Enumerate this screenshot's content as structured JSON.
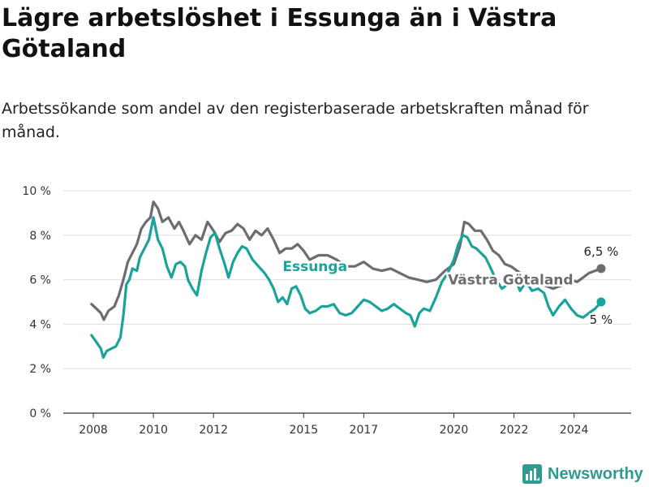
{
  "title": "Lägre arbetslöshet i Essunga än i Västra Götaland",
  "subtitle": "Arbetssökande som andel av den registerbaserade arbetskraften månad för månad.",
  "brand": {
    "name": "Newsworthy",
    "icon": "newsworthy-logo-icon",
    "color": "#2f9a8f"
  },
  "chart_data": {
    "type": "line",
    "title": "Lägre arbetslöshet i Essunga än i Västra Götaland",
    "subtitle": "Arbetssökande som andel av den registerbaserade arbetskraften månad för månad.",
    "xlabel": "",
    "ylabel": "",
    "x_unit": "year",
    "xlim": [
      2007.0,
      2025.9
    ],
    "ylim": [
      0,
      10
    ],
    "x_ticks": [
      2008,
      2010,
      2012,
      2015,
      2017,
      2020,
      2022,
      2024
    ],
    "x_tick_labels": [
      "2008",
      "2010",
      "2012",
      "2015",
      "2017",
      "2020",
      "2022",
      "2024"
    ],
    "y_ticks": [
      0,
      2,
      4,
      6,
      8,
      10
    ],
    "y_tick_labels": [
      "0 %",
      "2 %",
      "4 %",
      "6 %",
      "8 %",
      "10 %"
    ],
    "grid": true,
    "legend": "none (series labelled directly on the lines)",
    "series": [
      {
        "name": "Västra Götaland",
        "color": "#6c6c73",
        "end_label": "6,5 %",
        "points": [
          [
            2007.94,
            4.9
          ],
          [
            2008.1,
            4.7
          ],
          [
            2008.25,
            4.5
          ],
          [
            2008.35,
            4.2
          ],
          [
            2008.5,
            4.6
          ],
          [
            2008.7,
            4.8
          ],
          [
            2008.85,
            5.3
          ],
          [
            2009.0,
            6.0
          ],
          [
            2009.15,
            6.8
          ],
          [
            2009.3,
            7.2
          ],
          [
            2009.45,
            7.6
          ],
          [
            2009.6,
            8.3
          ],
          [
            2009.75,
            8.6
          ],
          [
            2009.9,
            8.8
          ],
          [
            2010.0,
            9.5
          ],
          [
            2010.15,
            9.2
          ],
          [
            2010.3,
            8.6
          ],
          [
            2010.5,
            8.8
          ],
          [
            2010.7,
            8.3
          ],
          [
            2010.85,
            8.6
          ],
          [
            2011.0,
            8.2
          ],
          [
            2011.2,
            7.6
          ],
          [
            2011.4,
            8.0
          ],
          [
            2011.6,
            7.8
          ],
          [
            2011.8,
            8.6
          ],
          [
            2012.0,
            8.2
          ],
          [
            2012.2,
            7.7
          ],
          [
            2012.4,
            8.1
          ],
          [
            2012.6,
            8.2
          ],
          [
            2012.8,
            8.5
          ],
          [
            2013.0,
            8.3
          ],
          [
            2013.2,
            7.8
          ],
          [
            2013.4,
            8.2
          ],
          [
            2013.6,
            8.0
          ],
          [
            2013.8,
            8.3
          ],
          [
            2014.0,
            7.8
          ],
          [
            2014.2,
            7.2
          ],
          [
            2014.4,
            7.4
          ],
          [
            2014.6,
            7.4
          ],
          [
            2014.8,
            7.6
          ],
          [
            2015.0,
            7.3
          ],
          [
            2015.2,
            6.9
          ],
          [
            2015.5,
            7.1
          ],
          [
            2015.8,
            7.1
          ],
          [
            2016.1,
            6.9
          ],
          [
            2016.4,
            6.6
          ],
          [
            2016.7,
            6.6
          ],
          [
            2017.0,
            6.8
          ],
          [
            2017.3,
            6.5
          ],
          [
            2017.6,
            6.4
          ],
          [
            2017.9,
            6.5
          ],
          [
            2018.2,
            6.3
          ],
          [
            2018.5,
            6.1
          ],
          [
            2018.8,
            6.0
          ],
          [
            2019.1,
            5.9
          ],
          [
            2019.4,
            6.0
          ],
          [
            2019.7,
            6.4
          ],
          [
            2020.0,
            6.7
          ],
          [
            2020.2,
            7.5
          ],
          [
            2020.35,
            8.6
          ],
          [
            2020.5,
            8.5
          ],
          [
            2020.7,
            8.2
          ],
          [
            2020.9,
            8.2
          ],
          [
            2021.1,
            7.8
          ],
          [
            2021.3,
            7.3
          ],
          [
            2021.5,
            7.1
          ],
          [
            2021.7,
            6.7
          ],
          [
            2021.9,
            6.6
          ],
          [
            2022.1,
            6.4
          ],
          [
            2022.3,
            6.2
          ],
          [
            2022.5,
            5.9
          ],
          [
            2022.7,
            5.8
          ],
          [
            2022.9,
            5.8
          ],
          [
            2023.1,
            5.7
          ],
          [
            2023.3,
            5.6
          ],
          [
            2023.5,
            5.7
          ],
          [
            2023.7,
            5.8
          ],
          [
            2023.9,
            6.0
          ],
          [
            2024.1,
            5.9
          ],
          [
            2024.3,
            6.1
          ],
          [
            2024.5,
            6.3
          ],
          [
            2024.7,
            6.4
          ],
          [
            2024.9,
            6.5
          ]
        ]
      },
      {
        "name": "Essunga",
        "color": "#1aa39a",
        "end_label": "5 %",
        "points": [
          [
            2007.94,
            3.5
          ],
          [
            2008.1,
            3.2
          ],
          [
            2008.25,
            2.9
          ],
          [
            2008.33,
            2.5
          ],
          [
            2008.45,
            2.8
          ],
          [
            2008.6,
            2.9
          ],
          [
            2008.75,
            3.0
          ],
          [
            2008.9,
            3.4
          ],
          [
            2009.0,
            4.4
          ],
          [
            2009.1,
            5.8
          ],
          [
            2009.2,
            6.0
          ],
          [
            2009.3,
            6.5
          ],
          [
            2009.45,
            6.4
          ],
          [
            2009.55,
            7.0
          ],
          [
            2009.7,
            7.4
          ],
          [
            2009.85,
            7.8
          ],
          [
            2010.0,
            8.8
          ],
          [
            2010.15,
            7.8
          ],
          [
            2010.3,
            7.4
          ],
          [
            2010.45,
            6.6
          ],
          [
            2010.6,
            6.1
          ],
          [
            2010.75,
            6.7
          ],
          [
            2010.9,
            6.8
          ],
          [
            2011.05,
            6.6
          ],
          [
            2011.15,
            6.0
          ],
          [
            2011.3,
            5.6
          ],
          [
            2011.45,
            5.3
          ],
          [
            2011.6,
            6.4
          ],
          [
            2011.75,
            7.2
          ],
          [
            2011.9,
            7.9
          ],
          [
            2012.05,
            8.1
          ],
          [
            2012.2,
            7.4
          ],
          [
            2012.35,
            6.8
          ],
          [
            2012.5,
            6.1
          ],
          [
            2012.65,
            6.8
          ],
          [
            2012.8,
            7.2
          ],
          [
            2012.95,
            7.5
          ],
          [
            2013.1,
            7.4
          ],
          [
            2013.3,
            6.9
          ],
          [
            2013.5,
            6.6
          ],
          [
            2013.7,
            6.3
          ],
          [
            2013.85,
            6.0
          ],
          [
            2014.0,
            5.6
          ],
          [
            2014.15,
            5.0
          ],
          [
            2014.3,
            5.2
          ],
          [
            2014.45,
            4.9
          ],
          [
            2014.6,
            5.6
          ],
          [
            2014.75,
            5.7
          ],
          [
            2014.9,
            5.3
          ],
          [
            2015.05,
            4.7
          ],
          [
            2015.2,
            4.5
          ],
          [
            2015.4,
            4.6
          ],
          [
            2015.6,
            4.8
          ],
          [
            2015.8,
            4.8
          ],
          [
            2016.0,
            4.9
          ],
          [
            2016.2,
            4.5
          ],
          [
            2016.4,
            4.4
          ],
          [
            2016.6,
            4.5
          ],
          [
            2016.8,
            4.8
          ],
          [
            2017.0,
            5.1
          ],
          [
            2017.2,
            5.0
          ],
          [
            2017.4,
            4.8
          ],
          [
            2017.6,
            4.6
          ],
          [
            2017.8,
            4.7
          ],
          [
            2018.0,
            4.9
          ],
          [
            2018.2,
            4.7
          ],
          [
            2018.4,
            4.5
          ],
          [
            2018.55,
            4.4
          ],
          [
            2018.7,
            3.9
          ],
          [
            2018.85,
            4.5
          ],
          [
            2019.0,
            4.7
          ],
          [
            2019.2,
            4.6
          ],
          [
            2019.4,
            5.2
          ],
          [
            2019.6,
            5.9
          ],
          [
            2019.8,
            6.3
          ],
          [
            2020.0,
            6.9
          ],
          [
            2020.15,
            7.6
          ],
          [
            2020.3,
            8.0
          ],
          [
            2020.45,
            7.9
          ],
          [
            2020.6,
            7.5
          ],
          [
            2020.75,
            7.4
          ],
          [
            2020.9,
            7.2
          ],
          [
            2021.05,
            7.0
          ],
          [
            2021.2,
            6.6
          ],
          [
            2021.4,
            6.0
          ],
          [
            2021.6,
            5.6
          ],
          [
            2021.8,
            5.8
          ],
          [
            2022.0,
            6.2
          ],
          [
            2022.2,
            5.5
          ],
          [
            2022.4,
            5.9
          ],
          [
            2022.6,
            5.5
          ],
          [
            2022.8,
            5.6
          ],
          [
            2023.0,
            5.4
          ],
          [
            2023.15,
            4.8
          ],
          [
            2023.3,
            4.4
          ],
          [
            2023.5,
            4.8
          ],
          [
            2023.7,
            5.1
          ],
          [
            2023.9,
            4.7
          ],
          [
            2024.1,
            4.4
          ],
          [
            2024.3,
            4.3
          ],
          [
            2024.5,
            4.5
          ],
          [
            2024.7,
            4.7
          ],
          [
            2024.9,
            5.0
          ]
        ]
      }
    ],
    "inline_labels": [
      {
        "series": "Essunga",
        "text": "Essunga",
        "x": 2014.3,
        "y": 6.6
      },
      {
        "series": "Västra Götaland",
        "text": "Västra Götaland",
        "x": 2019.8,
        "y": 6.0
      }
    ]
  }
}
